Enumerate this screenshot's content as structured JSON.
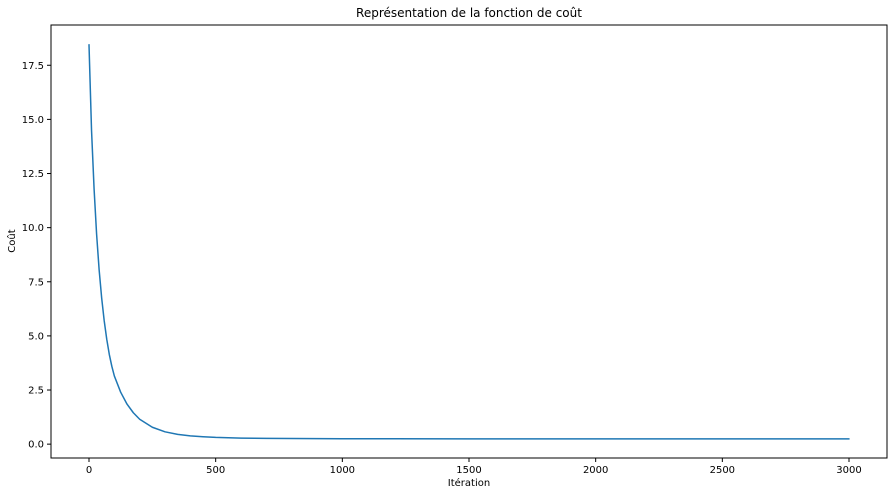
{
  "chart_data": {
    "type": "line",
    "title": "Représentation de la fonction de coût",
    "xlabel": "Itération",
    "ylabel": "Coût",
    "xlim": [
      -150,
      3150
    ],
    "ylim": [
      -0.64,
      19.36
    ],
    "x_ticks": [
      0,
      500,
      1000,
      1500,
      2000,
      2500,
      3000
    ],
    "x_tick_labels": [
      "0",
      "500",
      "1000",
      "1500",
      "2000",
      "2500",
      "3000"
    ],
    "y_ticks": [
      0.0,
      2.5,
      5.0,
      7.5,
      10.0,
      12.5,
      15.0,
      17.5
    ],
    "y_tick_labels": [
      "0.0",
      "2.5",
      "5.0",
      "7.5",
      "10.0",
      "12.5",
      "15.0",
      "17.5"
    ],
    "grid": false,
    "series": [
      {
        "color": "#1f77b4",
        "x": [
          0,
          10,
          20,
          30,
          40,
          50,
          60,
          70,
          80,
          90,
          100,
          125,
          150,
          175,
          200,
          250,
          300,
          350,
          400,
          450,
          500,
          600,
          700,
          800,
          900,
          1000,
          1200,
          1500,
          2000,
          2500,
          3000
        ],
        "y": [
          18.45,
          14.5,
          11.8,
          9.7,
          8.05,
          6.75,
          5.7,
          4.85,
          4.15,
          3.6,
          3.15,
          2.4,
          1.85,
          1.45,
          1.15,
          0.78,
          0.57,
          0.45,
          0.38,
          0.34,
          0.31,
          0.28,
          0.265,
          0.258,
          0.254,
          0.25,
          0.248,
          0.246,
          0.245,
          0.245,
          0.245
        ]
      }
    ]
  }
}
